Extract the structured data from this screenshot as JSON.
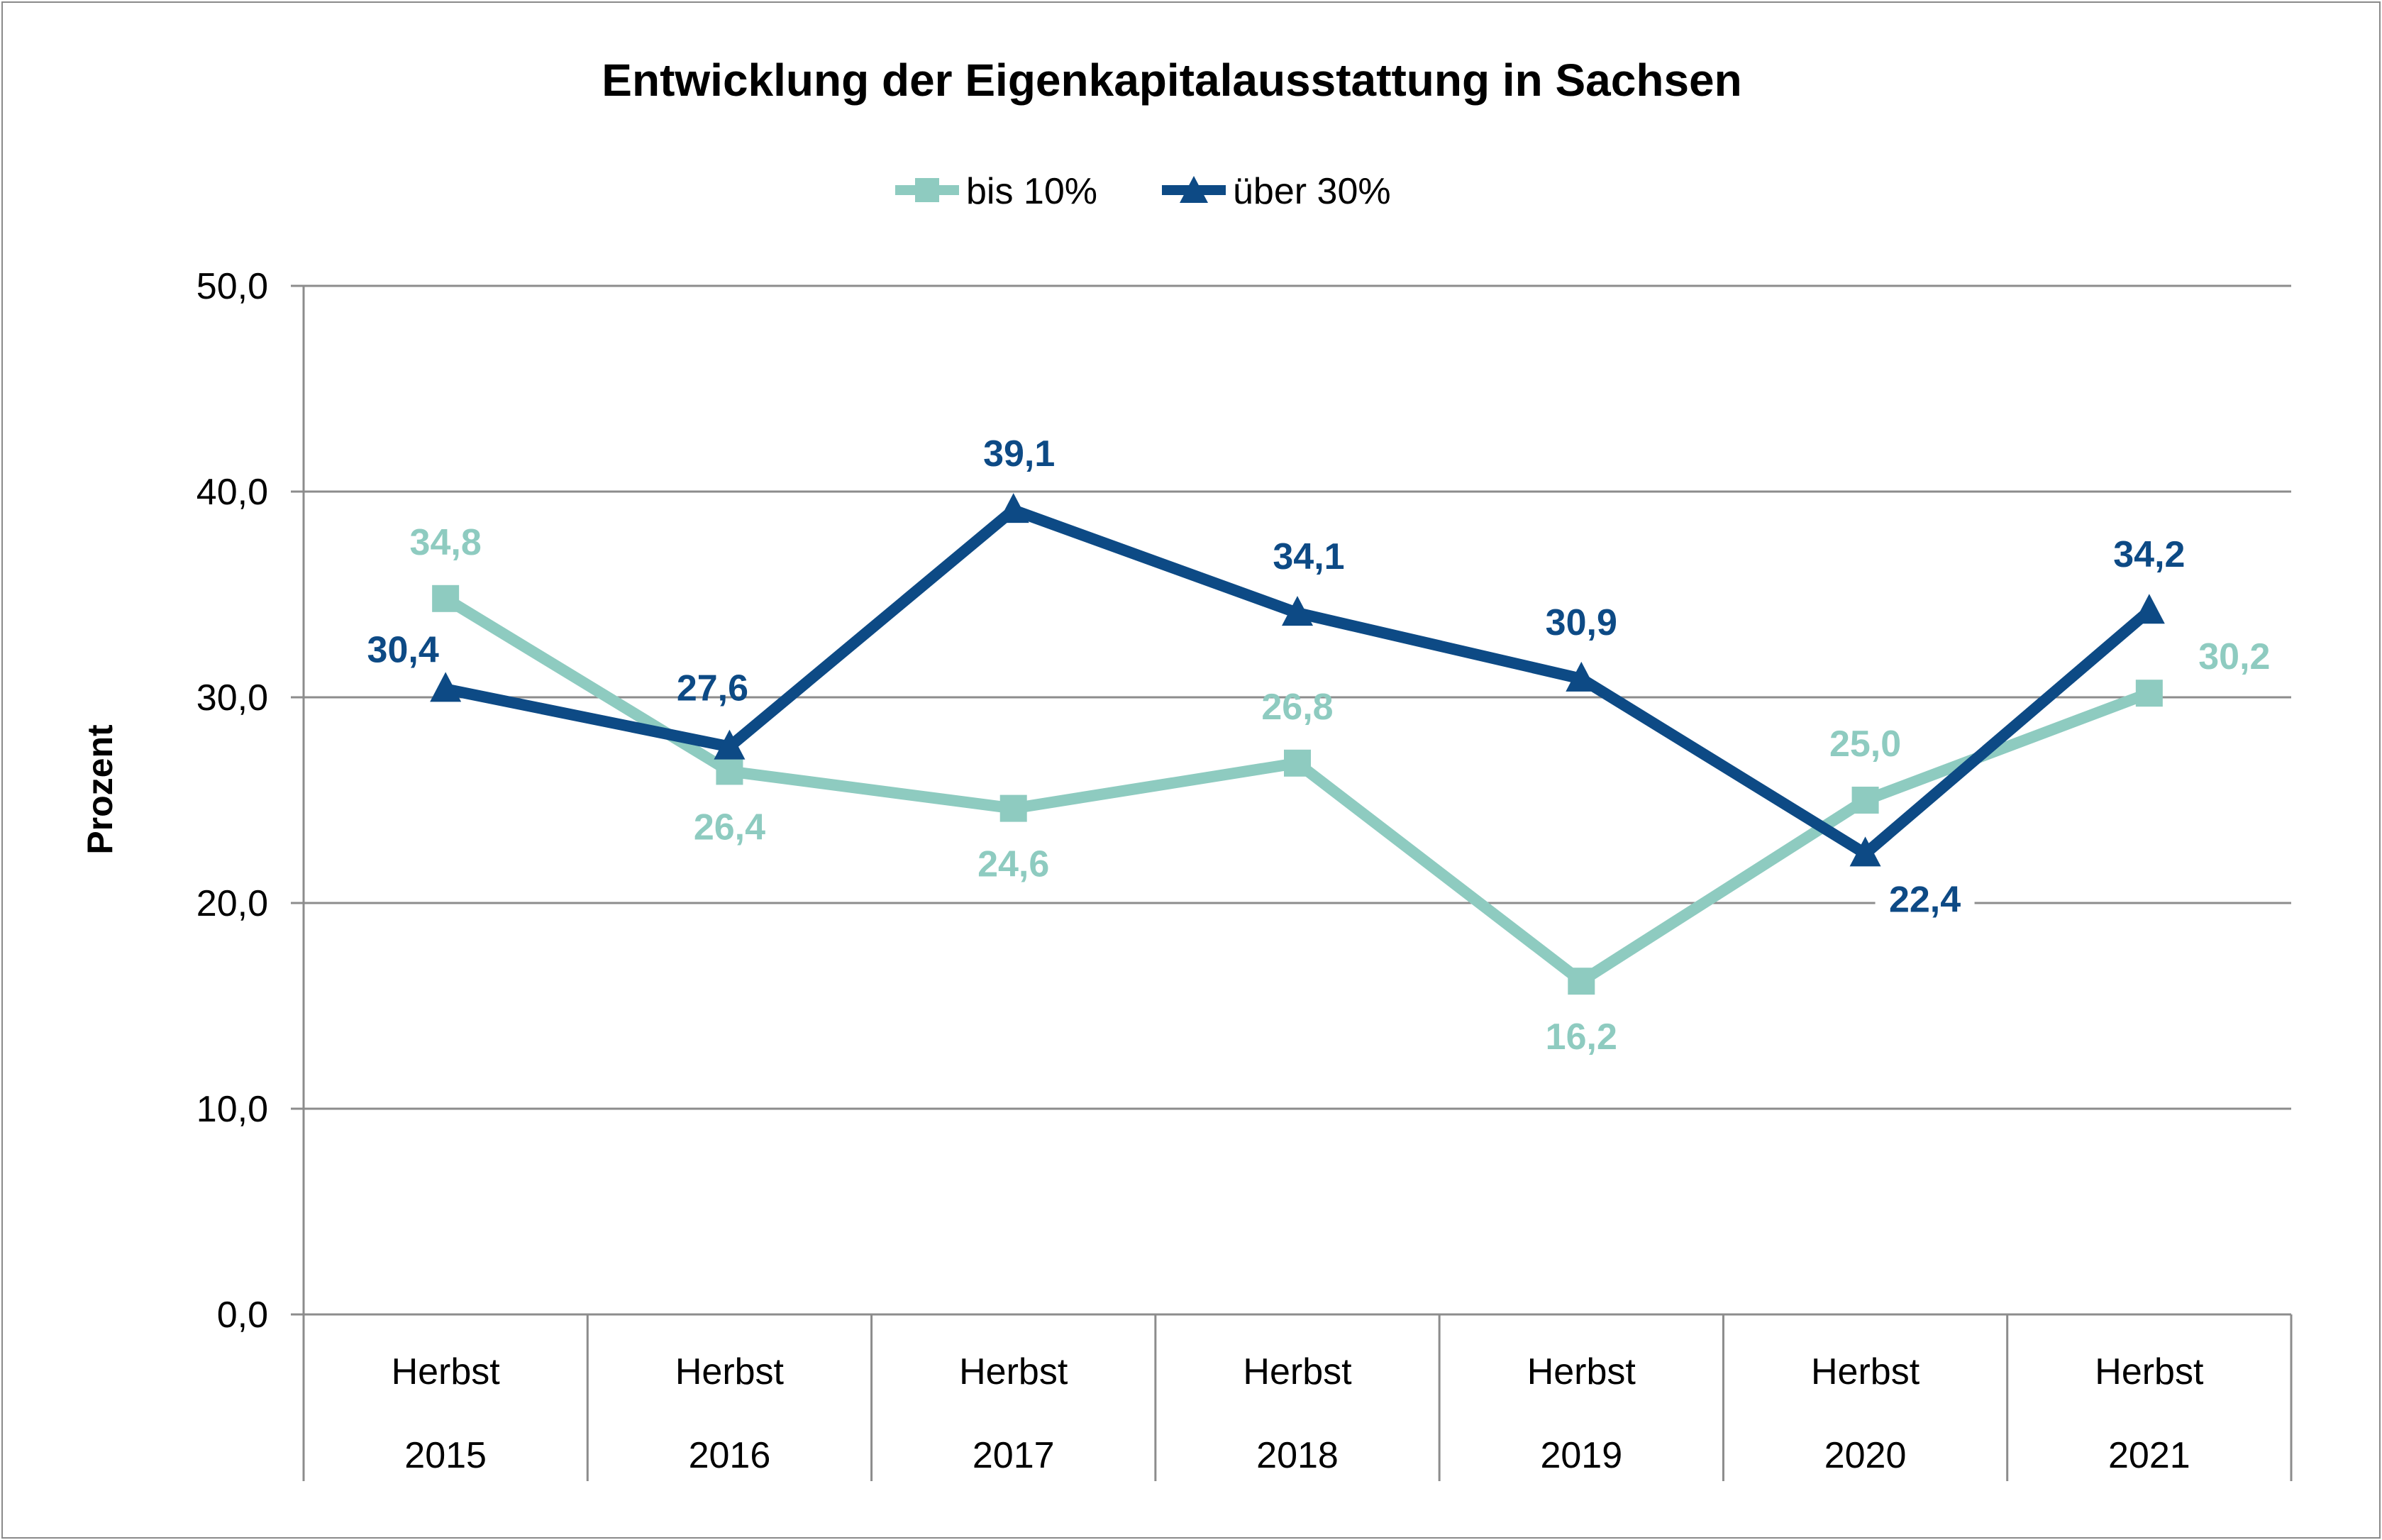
{
  "chart_data": {
    "type": "line",
    "title": "Entwicklung der Eigenkapitalausstattung in Sachsen",
    "ylabel": "Prozent",
    "xlabel": "",
    "ylim": [
      0,
      50
    ],
    "yticks": [
      0,
      10,
      20,
      30,
      40,
      50
    ],
    "ytick_labels": [
      "0,0",
      "10,0",
      "20,0",
      "30,0",
      "40,0",
      "50,0"
    ],
    "grid": true,
    "legend_position": "top",
    "categories": [
      {
        "line1": "Herbst",
        "line2": "2015"
      },
      {
        "line1": "Herbst",
        "line2": "2016"
      },
      {
        "line1": "Herbst",
        "line2": "2017"
      },
      {
        "line1": "Herbst",
        "line2": "2018"
      },
      {
        "line1": "Herbst",
        "line2": "2019"
      },
      {
        "line1": "Herbst",
        "line2": "2020"
      },
      {
        "line1": "Herbst",
        "line2": "2021"
      }
    ],
    "series": [
      {
        "name": "bis 10%",
        "color": "#8ecbc0",
        "marker": "square",
        "values": [
          34.8,
          26.4,
          24.6,
          26.8,
          16.2,
          25.0,
          30.2
        ],
        "labels": [
          "34,8",
          "26,4",
          "24,6",
          "26,8",
          "16,2",
          "25,0",
          "30,2"
        ]
      },
      {
        "name": "über 30%",
        "color": "#0d4a85",
        "marker": "triangle",
        "values": [
          30.4,
          27.6,
          39.1,
          34.1,
          30.9,
          22.4,
          34.2
        ],
        "labels": [
          "30,4",
          "27,6",
          "39,1",
          "34,1",
          "30,9",
          "22,4",
          "34,2"
        ]
      }
    ]
  }
}
